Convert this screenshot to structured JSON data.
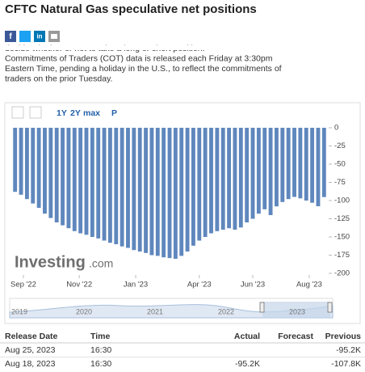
{
  "header": {
    "title": "CFTC Natural Gas speculative net positions"
  },
  "description": [
    "decide whether or not to take a long or short position.",
    "Commitments of Traders (COT) data is released each Friday at 3:30pm",
    "Eastern Time, pending a holiday in the U.S., to reflect the commitments of",
    "traders on the prior Tuesday."
  ],
  "toolbar": [
    "1Y",
    "2Y",
    "max",
    "P"
  ],
  "watermark": [
    "Investing",
    ".com"
  ],
  "chart_data": {
    "type": "bar",
    "color": "#5f87bd",
    "categories": [
      null,
      null,
      null,
      null,
      null,
      null,
      null,
      null,
      null,
      null,
      null,
      null,
      null,
      null,
      null,
      null,
      null,
      null,
      null,
      null,
      null,
      null,
      null,
      null,
      null,
      null,
      null,
      null,
      null,
      null,
      null,
      null,
      null,
      null,
      null,
      null,
      null,
      null,
      null,
      null,
      null,
      null,
      null,
      null,
      null,
      null,
      null,
      null,
      null,
      null,
      null,
      null,
      null
    ],
    "values": [
      -88,
      -92,
      -98,
      -104,
      -110,
      -118,
      -124,
      -130,
      -134,
      -138,
      -142,
      -145,
      -147,
      -150,
      -152,
      -155,
      -158,
      -160,
      -163,
      -165,
      -168,
      -170,
      -172,
      -175,
      -176,
      -178,
      -179,
      -180,
      -176,
      -170,
      -162,
      -155,
      -150,
      -145,
      -142,
      -140,
      -138,
      -140,
      -137,
      -130,
      -125,
      -118,
      -112,
      -120,
      -108,
      -102,
      -98,
      -95,
      -97,
      -100,
      -103,
      -107.8,
      -95.2
    ],
    "xticks": [
      {
        "value": 1.4,
        "label": "Sep '22"
      },
      {
        "value": 10.8,
        "label": "Nov '22"
      },
      {
        "value": 20.3,
        "label": "Jan '23"
      },
      {
        "value": 31,
        "label": "Apr '23"
      },
      {
        "value": 40,
        "label": "Jun '23"
      },
      {
        "value": 49.5,
        "label": "Aug '23"
      }
    ],
    "ylim": [
      -200,
      0
    ],
    "yticks": [
      0,
      -25,
      -50,
      -75,
      -100,
      -125,
      -150,
      -175,
      -200
    ],
    "grid": false
  },
  "navigator": {
    "labels": [
      "2019",
      "2020",
      "2021",
      "2022",
      "2023"
    ]
  },
  "table": {
    "header": [
      "Release Date",
      "Time",
      "Actual",
      "Forecast",
      "Previous"
    ],
    "rows": [
      [
        "Aug 25, 2023",
        "16:30",
        null,
        null,
        "-95.2K"
      ],
      [
        "Aug 18, 2023",
        "16:30",
        "-95.2K",
        null,
        "-107.8K"
      ]
    ]
  }
}
